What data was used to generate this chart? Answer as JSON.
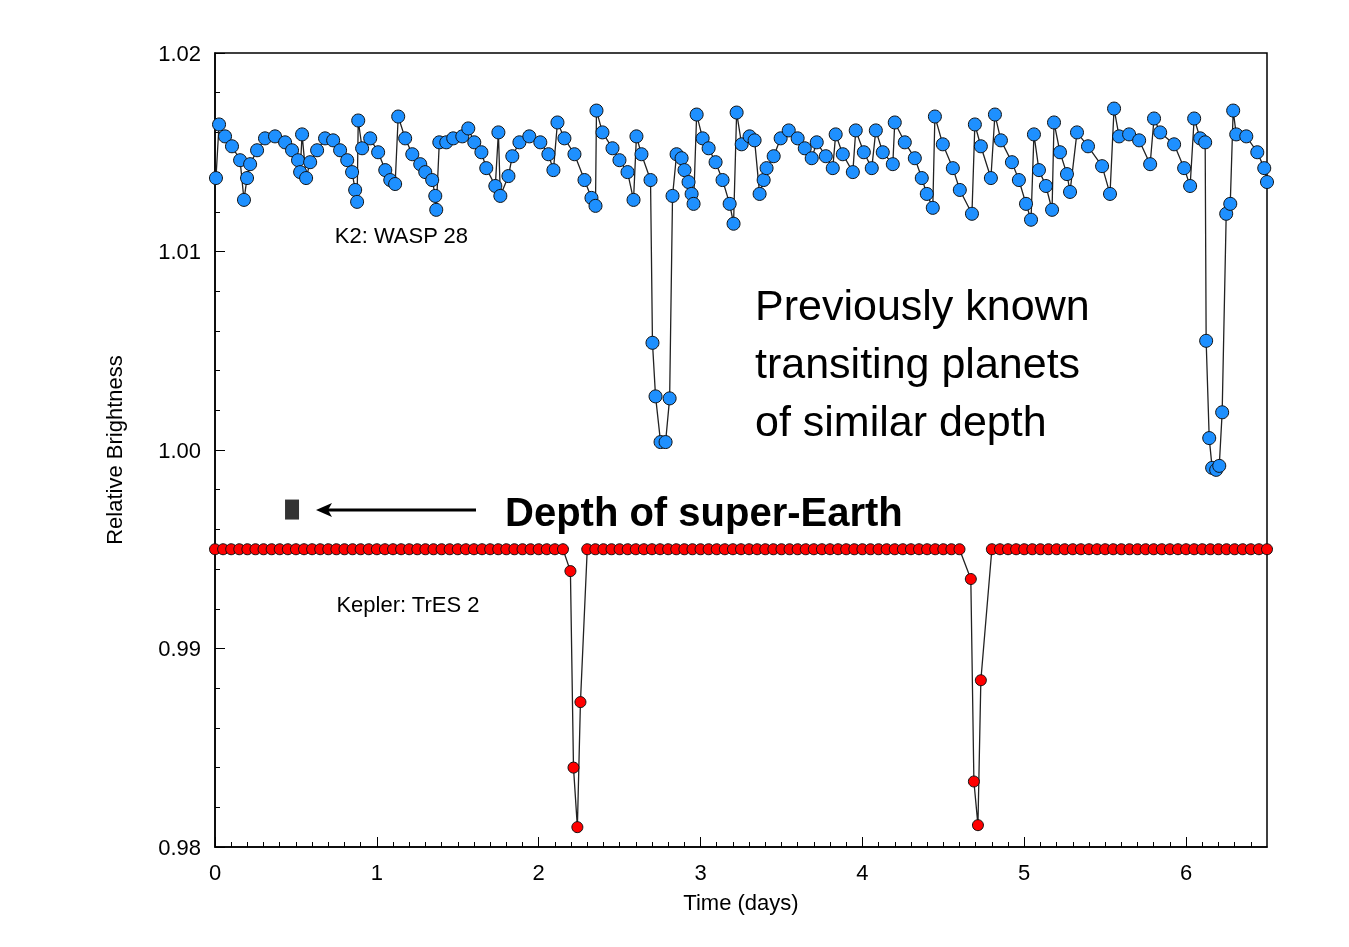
{
  "chart_data": {
    "type": "line",
    "xlabel": "Time (days)",
    "ylabel": "Relative Brightness",
    "xlim": [
      0,
      6.5
    ],
    "xticks": [
      0,
      1,
      2,
      3,
      4,
      5,
      6
    ],
    "ylim": [
      0.98,
      1.02
    ],
    "yticks": [
      0.98,
      0.99,
      {
        "value": 1,
        "label": "1.00"
      },
      1.01,
      1.02
    ],
    "grid": false,
    "legend": false,
    "marker": "circle",
    "annotations": [
      "Previously known\ntransiting planets\nof similar depth",
      "Depth of super-Earth"
    ],
    "series": [
      {
        "name": "K2: WASP 28",
        "color": "#1e90ff",
        "x": [
          0.006,
          0.025,
          0.062,
          0.105,
          0.155,
          0.179,
          0.198,
          0.217,
          0.26,
          0.309,
          0.371,
          0.433,
          0.476,
          0.513,
          0.526,
          0.538,
          0.563,
          0.588,
          0.631,
          0.68,
          0.73,
          0.773,
          0.817,
          0.847,
          0.866,
          0.878,
          0.885,
          0.909,
          0.959,
          1.008,
          1.052,
          1.083,
          1.113,
          1.132,
          1.175,
          1.219,
          1.268,
          1.299,
          1.342,
          1.361,
          1.367,
          1.386,
          1.429,
          1.472,
          1.528,
          1.565,
          1.602,
          1.646,
          1.676,
          1.732,
          1.751,
          1.763,
          1.813,
          1.837,
          1.881,
          1.942,
          2.01,
          2.06,
          2.091,
          2.116,
          2.159,
          2.221,
          2.283,
          2.326,
          2.351,
          2.357,
          2.394,
          2.456,
          2.499,
          2.549,
          2.586,
          2.604,
          2.635,
          2.691,
          2.703,
          2.722,
          2.753,
          2.784,
          2.809,
          2.827,
          2.852,
          2.883,
          2.901,
          2.926,
          2.945,
          2.957,
          2.976,
          3.013,
          3.05,
          3.093,
          3.136,
          3.18,
          3.204,
          3.223,
          3.254,
          3.303,
          3.334,
          3.365,
          3.39,
          3.408,
          3.452,
          3.495,
          3.545,
          3.6,
          3.644,
          3.687,
          3.718,
          3.774,
          3.817,
          3.835,
          3.879,
          3.941,
          3.959,
          4.009,
          4.058,
          4.083,
          4.126,
          4.188,
          4.2,
          4.262,
          4.324,
          4.367,
          4.398,
          4.435,
          4.448,
          4.497,
          4.559,
          4.602,
          4.677,
          4.695,
          4.732,
          4.794,
          4.819,
          4.856,
          4.924,
          4.967,
          5.011,
          5.042,
          5.06,
          5.091,
          5.134,
          5.172,
          5.184,
          5.221,
          5.264,
          5.283,
          5.326,
          5.394,
          5.481,
          5.53,
          5.555,
          5.586,
          5.648,
          5.71,
          5.778,
          5.802,
          5.84,
          5.926,
          5.988,
          6.025,
          6.05,
          6.087,
          6.118,
          6.124,
          6.143,
          6.161,
          6.186,
          6.205,
          6.223,
          6.248,
          6.273,
          6.291,
          6.31,
          6.372,
          6.44,
          6.483,
          6.5
        ],
        "values": [
          1.0137,
          1.0164,
          1.0158,
          1.0153,
          1.0146,
          1.0126,
          1.0137,
          1.0144,
          1.0151,
          1.0157,
          1.0158,
          1.0155,
          1.0151,
          1.0146,
          1.014,
          1.0159,
          1.0137,
          1.0145,
          1.0151,
          1.0157,
          1.0156,
          1.0151,
          1.0146,
          1.014,
          1.0131,
          1.0125,
          1.0166,
          1.0152,
          1.0157,
          1.015,
          1.0141,
          1.0136,
          1.0134,
          1.0168,
          1.0157,
          1.0149,
          1.0144,
          1.014,
          1.0136,
          1.0128,
          1.0121,
          1.0155,
          1.0155,
          1.0157,
          1.0158,
          1.0162,
          1.0155,
          1.015,
          1.0142,
          1.0133,
          1.016,
          1.0128,
          1.0138,
          1.0148,
          1.0155,
          1.0158,
          1.0155,
          1.0149,
          1.0141,
          1.0165,
          1.0157,
          1.0149,
          1.0136,
          1.0127,
          1.0123,
          1.0171,
          1.016,
          1.0152,
          1.0146,
          1.014,
          1.0126,
          1.0158,
          1.0149,
          1.0136,
          1.0054,
          1.0027,
          1.0004,
          1.0004,
          1.0026,
          1.0128,
          1.0149,
          1.0147,
          1.0141,
          1.0135,
          1.0129,
          1.0124,
          1.0169,
          1.0157,
          1.0152,
          1.0145,
          1.0136,
          1.0124,
          1.0114,
          1.017,
          1.0154,
          1.0158,
          1.0156,
          1.0129,
          1.0136,
          1.0142,
          1.0148,
          1.0157,
          1.0161,
          1.0157,
          1.0152,
          1.0147,
          1.0155,
          1.0148,
          1.0142,
          1.0159,
          1.0149,
          1.014,
          1.0161,
          1.015,
          1.0142,
          1.0161,
          1.015,
          1.0144,
          1.0165,
          1.0155,
          1.0147,
          1.0137,
          1.0129,
          1.0122,
          1.0168,
          1.0154,
          1.0142,
          1.0131,
          1.0119,
          1.0164,
          1.0153,
          1.0137,
          1.0169,
          1.0156,
          1.0145,
          1.0136,
          1.0124,
          1.0116,
          1.0159,
          1.0141,
          1.0133,
          1.0121,
          1.0165,
          1.015,
          1.0139,
          1.013,
          1.016,
          1.0153,
          1.0143,
          1.0129,
          1.0172,
          1.0158,
          1.0159,
          1.0156,
          1.0144,
          1.0167,
          1.016,
          1.0154,
          1.0142,
          1.0133,
          1.0167,
          1.0157,
          1.0155,
          1.0055,
          1.0006,
          0.9991,
          0.999,
          0.9992,
          1.0019,
          1.0119,
          1.0124,
          1.0171,
          1.0159,
          1.0158,
          1.015,
          1.0142,
          1.0135
        ]
      },
      {
        "name": "Kepler: TrES 2",
        "color": "#ff0000",
        "x": [
          0,
          0.05,
          0.1,
          0.15,
          0.2,
          0.25,
          0.3,
          0.35,
          0.4,
          0.45,
          0.5,
          0.55,
          0.6,
          0.65,
          0.7,
          0.75,
          0.8,
          0.85,
          0.9,
          0.95,
          1,
          1.05,
          1.1,
          1.15,
          1.2,
          1.25,
          1.3,
          1.35,
          1.4,
          1.45,
          1.5,
          1.55,
          1.6,
          1.65,
          1.7,
          1.75,
          1.8,
          1.85,
          1.9,
          1.95,
          2,
          2.05,
          2.1,
          2.15,
          2.196,
          2.215,
          2.239,
          2.258,
          2.3,
          2.35,
          2.4,
          2.45,
          2.5,
          2.55,
          2.6,
          2.65,
          2.7,
          2.75,
          2.8,
          2.85,
          2.9,
          2.95,
          3,
          3.05,
          3.1,
          3.15,
          3.2,
          3.25,
          3.3,
          3.35,
          3.4,
          3.45,
          3.5,
          3.55,
          3.6,
          3.65,
          3.7,
          3.75,
          3.8,
          3.85,
          3.9,
          3.95,
          4,
          4.05,
          4.1,
          4.15,
          4.2,
          4.25,
          4.3,
          4.35,
          4.4,
          4.45,
          4.5,
          4.55,
          4.6,
          4.67,
          4.689,
          4.714,
          4.732,
          4.8,
          4.85,
          4.9,
          4.95,
          5,
          5.05,
          5.1,
          5.15,
          5.2,
          5.25,
          5.3,
          5.35,
          5.4,
          5.45,
          5.5,
          5.55,
          5.6,
          5.65,
          5.7,
          5.75,
          5.8,
          5.85,
          5.9,
          5.95,
          6,
          6.05,
          6.1,
          6.15,
          6.2,
          6.25,
          6.3,
          6.35,
          6.4,
          6.45,
          6.5
        ],
        "type": "line",
        "values": [
          0.995,
          0.995,
          0.995,
          0.995,
          0.995,
          0.995,
          0.995,
          0.995,
          0.995,
          0.995,
          0.995,
          0.995,
          0.995,
          0.995,
          0.995,
          0.995,
          0.995,
          0.995,
          0.995,
          0.995,
          0.995,
          0.995,
          0.995,
          0.995,
          0.995,
          0.995,
          0.995,
          0.995,
          0.995,
          0.995,
          0.995,
          0.995,
          0.995,
          0.995,
          0.995,
          0.995,
          0.995,
          0.995,
          0.995,
          0.995,
          0.995,
          0.995,
          0.995,
          0.995,
          0.9939,
          0.984,
          0.981,
          0.9873,
          0.995,
          0.995,
          0.995,
          0.995,
          0.995,
          0.995,
          0.995,
          0.995,
          0.995,
          0.995,
          0.995,
          0.995,
          0.995,
          0.995,
          0.995,
          0.995,
          0.995,
          0.995,
          0.995,
          0.995,
          0.995,
          0.995,
          0.995,
          0.995,
          0.995,
          0.995,
          0.995,
          0.995,
          0.995,
          0.995,
          0.995,
          0.995,
          0.995,
          0.995,
          0.995,
          0.995,
          0.995,
          0.995,
          0.995,
          0.995,
          0.995,
          0.995,
          0.995,
          0.995,
          0.995,
          0.995,
          0.995,
          0.9935,
          0.9833,
          0.9811,
          0.9884,
          0.995,
          0.995,
          0.995,
          0.995,
          0.995,
          0.995,
          0.995,
          0.995,
          0.995,
          0.995,
          0.995,
          0.995,
          0.995,
          0.995,
          0.995,
          0.995,
          0.995,
          0.995,
          0.995,
          0.995,
          0.995,
          0.995,
          0.995,
          0.995,
          0.995,
          0.995,
          0.995,
          0.995,
          0.995,
          0.995,
          0.995,
          0.995,
          0.995,
          0.995,
          0.995
        ]
      },
      {
        "type": "scatter",
        "marker": "square",
        "color": "#000000",
        "x": [
          0.476
        ],
        "values": [
          0.997
        ]
      }
    ]
  }
}
